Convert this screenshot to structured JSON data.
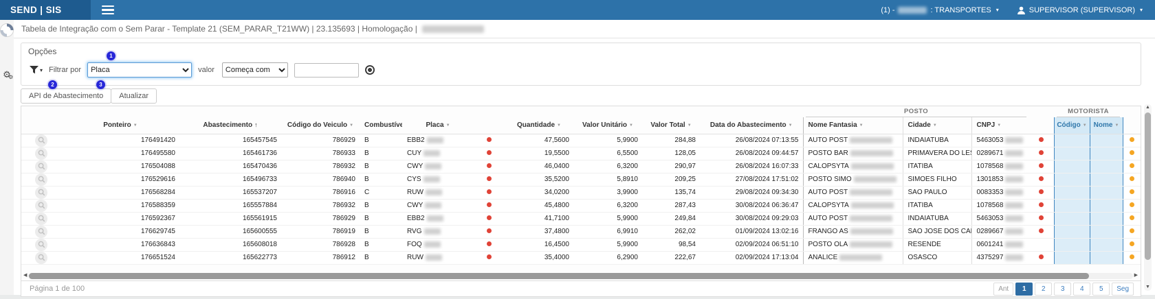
{
  "navbar": {
    "brand": "SEND | SIS",
    "account_prefix": "(1) -",
    "account_suffix": ": TRANSPORTES",
    "user_label": "SUPERVISOR (SUPERVISOR)"
  },
  "page": {
    "title": "Tabela de Integração com o Sem Parar - Template 21 (SEM_PARAR_T21WW) | 23.135693 | Homologação |"
  },
  "options": {
    "panel_title": "Opções",
    "filter_by_label": "Filtrar por",
    "filter_field": "Placa",
    "value_label": "valor",
    "operator": "Começa com",
    "search_value": "",
    "annotations": [
      "1",
      "2",
      "3"
    ]
  },
  "tabs": [
    {
      "label": "API de Abastecimento"
    },
    {
      "label": "Atualizar"
    }
  ],
  "table": {
    "group_posto": "POSTO",
    "group_motorista": "MOTORISTA",
    "headers": {
      "ponteiro": "Ponteiro",
      "abastecimento": "Abastecimento",
      "codigo_veiculo": "Código do Veiculo",
      "combustivel": "Combustível",
      "placa": "Placa",
      "quantidade": "Quantidade",
      "valor_unitario": "Valor Unitário",
      "valor_total": "Valor Total",
      "data_abastecimento": "Data do Abastecimento",
      "nome_fantasia": "Nome Fantasia",
      "cidade": "Cidade",
      "cnpj": "CNPJ",
      "motorista_codigo": "Código",
      "motorista_nome": "Nome"
    },
    "rows": [
      {
        "ponteiro": "176491420",
        "abastecimento": "165457545",
        "codigo_veiculo": "786929",
        "combustivel": "B",
        "placa": "EBB2",
        "quantidade": "47,5600",
        "valor_unitario": "5,9900",
        "valor_total": "284,88",
        "data": "26/08/2024 07:13:55",
        "nome_fantasia": "AUTO POST",
        "cidade": "INDAIATUBA",
        "cnpj": "5463053",
        "posto_alert": true,
        "motorista_alert": true
      },
      {
        "ponteiro": "176495580",
        "abastecimento": "165461736",
        "codigo_veiculo": "786933",
        "combustivel": "B",
        "placa": "CUY",
        "quantidade": "19,5500",
        "valor_unitario": "6,5500",
        "valor_total": "128,05",
        "data": "26/08/2024 09:44:57",
        "nome_fantasia": "POSTO BAR",
        "cidade": "PRIMAVERA DO LESTE",
        "cnpj": "0289671",
        "posto_alert": true,
        "motorista_alert": true
      },
      {
        "ponteiro": "176504088",
        "abastecimento": "165470436",
        "codigo_veiculo": "786932",
        "combustivel": "B",
        "placa": "CWY",
        "quantidade": "46,0400",
        "valor_unitario": "6,3200",
        "valor_total": "290,97",
        "data": "26/08/2024 16:07:33",
        "nome_fantasia": "CALOPSYTA",
        "cidade": "ITATIBA",
        "cnpj": "1078568",
        "posto_alert": true,
        "motorista_alert": true
      },
      {
        "ponteiro": "176529616",
        "abastecimento": "165496733",
        "codigo_veiculo": "786940",
        "combustivel": "B",
        "placa": "CYS",
        "quantidade": "35,5200",
        "valor_unitario": "5,8910",
        "valor_total": "209,25",
        "data": "27/08/2024 17:51:02",
        "nome_fantasia": "POSTO SIMO",
        "cidade": "SIMOES FILHO",
        "cnpj": "1301853",
        "posto_alert": true,
        "motorista_alert": true
      },
      {
        "ponteiro": "176568284",
        "abastecimento": "165537207",
        "codigo_veiculo": "786916",
        "combustivel": "C",
        "placa": "RUW",
        "quantidade": "34,0200",
        "valor_unitario": "3,9900",
        "valor_total": "135,74",
        "data": "29/08/2024 09:34:30",
        "nome_fantasia": "AUTO POST",
        "cidade": "SAO PAULO",
        "cnpj": "0083353",
        "posto_alert": true,
        "motorista_alert": true
      },
      {
        "ponteiro": "176588359",
        "abastecimento": "165557884",
        "codigo_veiculo": "786932",
        "combustivel": "B",
        "placa": "CWY",
        "quantidade": "45,4800",
        "valor_unitario": "6,3200",
        "valor_total": "287,43",
        "data": "30/08/2024 06:36:47",
        "nome_fantasia": "CALOPSYTA",
        "cidade": "ITATIBA",
        "cnpj": "1078568",
        "posto_alert": true,
        "motorista_alert": true
      },
      {
        "ponteiro": "176592367",
        "abastecimento": "165561915",
        "codigo_veiculo": "786929",
        "combustivel": "B",
        "placa": "EBB2",
        "quantidade": "41,7100",
        "valor_unitario": "5,9900",
        "valor_total": "249,84",
        "data": "30/08/2024 09:29:03",
        "nome_fantasia": "AUTO POST",
        "cidade": "INDAIATUBA",
        "cnpj": "5463053",
        "posto_alert": true,
        "motorista_alert": true
      },
      {
        "ponteiro": "176629745",
        "abastecimento": "165600555",
        "codigo_veiculo": "786919",
        "combustivel": "B",
        "placa": "RVG",
        "quantidade": "37,4800",
        "valor_unitario": "6,9910",
        "valor_total": "262,02",
        "data": "01/09/2024 13:02:16",
        "nome_fantasia": "FRANGO AS",
        "cidade": "SAO JOSE DOS CAMPOS",
        "cnpj": "0289667",
        "posto_alert": true,
        "motorista_alert": true
      },
      {
        "ponteiro": "176636843",
        "abastecimento": "165608018",
        "codigo_veiculo": "786928",
        "combustivel": "B",
        "placa": "FOQ",
        "quantidade": "16,4500",
        "valor_unitario": "5,9900",
        "valor_total": "98,54",
        "data": "02/09/2024 06:51:10",
        "nome_fantasia": "POSTO OLA",
        "cidade": "RESENDE",
        "cnpj": "0601241",
        "posto_alert": false,
        "motorista_alert": true
      },
      {
        "ponteiro": "176651524",
        "abastecimento": "165622773",
        "codigo_veiculo": "786912",
        "combustivel": "B",
        "placa": "RUW",
        "quantidade": "35,4000",
        "valor_unitario": "6,2900",
        "valor_total": "222,67",
        "data": "02/09/2024 17:13:04",
        "nome_fantasia": "ANALICE",
        "cidade": "OSASCO",
        "cnpj": "4375297",
        "posto_alert": true,
        "motorista_alert": true
      }
    ]
  },
  "footer": {
    "page_info": "Página 1 de 100",
    "prev": "Ant",
    "next": "Seg",
    "pages": [
      "1",
      "2",
      "3",
      "4",
      "5"
    ],
    "active_page": "1"
  },
  "colors": {
    "navbar_dark": "#1e5b8f",
    "navbar_light": "#2d72a9",
    "status_red": "#e04337",
    "status_orange": "#f5a623",
    "motorista_highlight": "#dcedf8",
    "pagination_active": "#2e6da4",
    "annotation_badge": "#2727d8"
  }
}
